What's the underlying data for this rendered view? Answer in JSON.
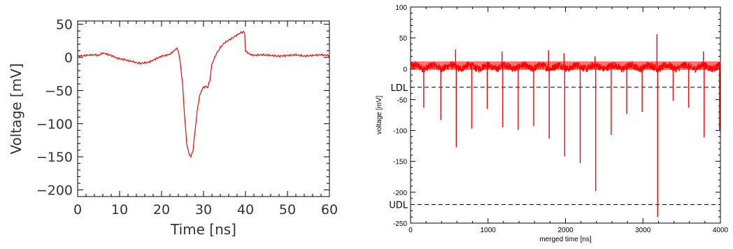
{
  "colors": {
    "trace": "#ff0000",
    "axis": "#000000",
    "threshold": "#000000",
    "background": "#ffffff"
  },
  "chart_data": [
    {
      "type": "line",
      "title": "",
      "xlabel": "Time [ns]",
      "ylabel": "Voltage [mV]",
      "xlim": [
        0,
        60
      ],
      "ylim": [
        -210,
        55
      ],
      "xticks": [
        0,
        10,
        20,
        30,
        40,
        50,
        60
      ],
      "yticks": [
        50,
        0,
        -50,
        -100,
        -150,
        -200
      ],
      "xtick_labels": [
        "0",
        "10",
        "20",
        "30",
        "40",
        "50",
        "60"
      ],
      "ytick_labels": [
        "50",
        "0",
        "−50",
        "−100",
        "−150",
        "−200"
      ],
      "grid": false,
      "series": [
        {
          "x": [
            0,
            2,
            4,
            5,
            6,
            7,
            8,
            9,
            10,
            11,
            12,
            13,
            14,
            15,
            16,
            17,
            18,
            19,
            20,
            21,
            22,
            23,
            23.5,
            24,
            24.5,
            25,
            25.5,
            26,
            26.5,
            27,
            27.5,
            28,
            28.5,
            29,
            29.5,
            30,
            30.5,
            31,
            31.5,
            32,
            33,
            34,
            35,
            36,
            37,
            38,
            39,
            39.7,
            39.8,
            40,
            41,
            42,
            44,
            46,
            48,
            50,
            52,
            54,
            56,
            58,
            60
          ],
          "y": [
            2,
            3,
            4,
            3,
            7,
            5,
            3,
            0,
            -2,
            -3,
            -5,
            -6,
            -8,
            -9,
            -8,
            -7,
            -4,
            -1,
            2,
            3,
            5,
            10,
            14,
            10,
            -10,
            -40,
            -90,
            -130,
            -145,
            -150,
            -140,
            -110,
            -80,
            -60,
            -50,
            -45,
            -44,
            -45,
            -35,
            -10,
            5,
            15,
            22,
            26,
            30,
            34,
            38,
            38,
            37,
            10,
            5,
            3,
            4,
            3,
            2,
            3,
            4,
            2,
            3,
            4,
            3
          ]
        }
      ]
    },
    {
      "type": "line",
      "title": "",
      "xlabel": "merged time [ns]",
      "ylabel": "voltage [mV]",
      "xlim": [
        0,
        4000
      ],
      "ylim": [
        -250,
        100
      ],
      "xticks": [
        0,
        1000,
        2000,
        3000,
        4000
      ],
      "yticks": [
        100,
        50,
        0,
        -50,
        -100,
        -150,
        -200,
        -250
      ],
      "xtick_labels": [
        "0",
        "1000",
        "2000",
        "3000",
        "4000"
      ],
      "ytick_labels": [
        "100",
        "50",
        "0",
        "-50",
        "-100",
        "-150",
        "-200",
        "-250"
      ],
      "grid": false,
      "series": [
        {
          "baseline": 3,
          "noise_amplitude": 10,
          "spikes": [
            {
              "x": 170,
              "y": -63
            },
            {
              "x": 390,
              "y": -83
            },
            {
              "x": 590,
              "y": -127,
              "up": 31
            },
            {
              "x": 790,
              "y": -97
            },
            {
              "x": 990,
              "y": -65
            },
            {
              "x": 1190,
              "y": -95,
              "up": 28
            },
            {
              "x": 1390,
              "y": -99
            },
            {
              "x": 1590,
              "y": -93
            },
            {
              "x": 1790,
              "y": -113,
              "up": 30
            },
            {
              "x": 1990,
              "y": -142,
              "up": 25
            },
            {
              "x": 2190,
              "y": -153
            },
            {
              "x": 2390,
              "y": -198,
              "up": 20
            },
            {
              "x": 2590,
              "y": -107
            },
            {
              "x": 2790,
              "y": -73
            },
            {
              "x": 2990,
              "y": -70
            },
            {
              "x": 3190,
              "y": -240,
              "up": 56
            },
            {
              "x": 3390,
              "y": -52
            },
            {
              "x": 3590,
              "y": -63
            },
            {
              "x": 3790,
              "y": -111,
              "up": 28
            },
            {
              "x": 3990,
              "y": -100
            }
          ]
        }
      ],
      "thresholds": [
        {
          "label": "LDL",
          "y": -30
        },
        {
          "label": "UDL",
          "y": -220
        }
      ]
    }
  ]
}
